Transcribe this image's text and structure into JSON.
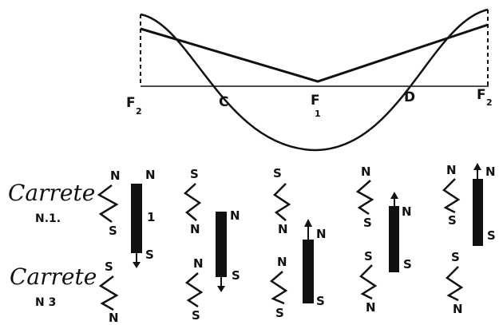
{
  "axis": {
    "labels": [
      {
        "id": "f2",
        "main": "F",
        "sub": "2"
      },
      {
        "id": "c",
        "main": "C",
        "sub": ""
      },
      {
        "id": "f1",
        "main": "F",
        "sub": "1"
      },
      {
        "id": "d",
        "main": "D",
        "sub": ""
      },
      {
        "id": "f3",
        "main": "F",
        "sub": "2"
      }
    ]
  },
  "rows": {
    "row1": {
      "title": "Carrete",
      "sub": "N.1."
    },
    "row2": {
      "title": "Carrete",
      "sub": "N 3"
    }
  },
  "columns": [
    {
      "top_coil": {
        "upper": "N",
        "lower": "S"
      },
      "bottom_coil": {
        "upper": "S",
        "lower": "N"
      },
      "magnet": {
        "upper": "N",
        "mid": "1",
        "lower": "S",
        "arrow": "down"
      }
    },
    {
      "top_coil": {
        "upper": "S",
        "lower": "N"
      },
      "bottom_coil": {
        "upper": "N",
        "lower": "S"
      },
      "magnet": {
        "upper": "N",
        "mid": "",
        "lower": "S",
        "arrow": "down"
      }
    },
    {
      "top_coil": {
        "upper": "S",
        "lower": "N"
      },
      "bottom_coil": {
        "upper": "N",
        "lower": "S"
      },
      "magnet": {
        "upper": "N",
        "mid": "",
        "lower": "S",
        "arrow": "up"
      }
    },
    {
      "top_coil": {
        "upper": "N",
        "lower": "S"
      },
      "bottom_coil": {
        "upper": "S",
        "lower": "N"
      },
      "magnet": {
        "upper": "N",
        "mid": "",
        "lower": "S",
        "arrow": "up"
      }
    },
    {
      "top_coil": {
        "upper": "N",
        "lower": "S"
      },
      "bottom_coil": {
        "upper": "S",
        "lower": "N"
      },
      "magnet": {
        "upper": "N",
        "mid": "",
        "lower": "S",
        "arrow": "up"
      }
    }
  ]
}
